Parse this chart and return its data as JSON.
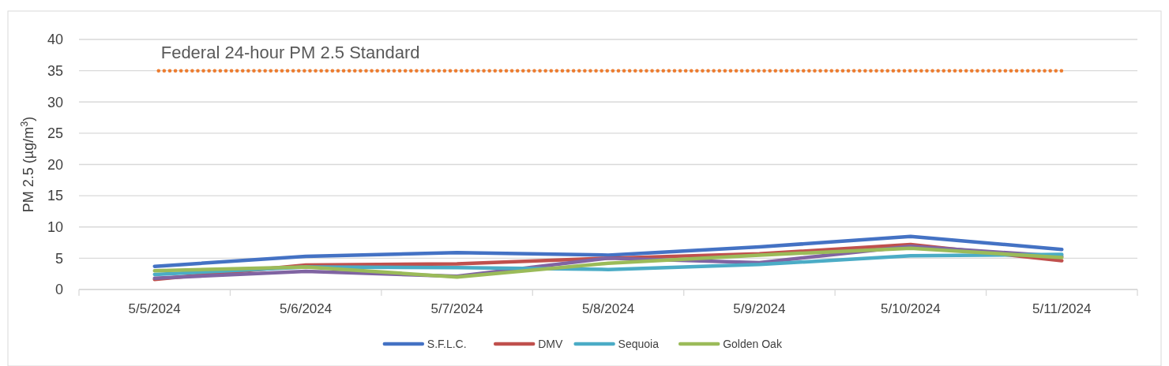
{
  "chart_data": {
    "type": "line",
    "ylabel": "PM 2.5 (µg/m$^{3}$)",
    "categories": [
      "5/5/2024",
      "5/6/2024",
      "5/7/2024",
      "5/8/2024",
      "5/9/2024",
      "5/10/2024",
      "5/11/2024"
    ],
    "ylim": [
      0,
      40
    ],
    "yticks": [
      0,
      5,
      10,
      15,
      20,
      25,
      30,
      35,
      40
    ],
    "grid": "y",
    "legend": "bottom",
    "marker": "none",
    "line_style": "solid",
    "series": [
      {
        "name": "S.F.L.C.",
        "color": "#4472c4",
        "values": [
          3.7,
          5.3,
          5.9,
          5.5,
          6.8,
          8.5,
          6.4
        ]
      },
      {
        "name": "DMV",
        "color": "#c0504d",
        "values": [
          1.6,
          3.9,
          4.1,
          5.0,
          5.7,
          7.2,
          4.6
        ]
      },
      {
        "color": "#8064a2",
        "values": [
          1.8,
          2.9,
          2.1,
          5.0,
          4.3,
          6.9,
          5.3
        ]
      },
      {
        "name": "Sequoia",
        "color": "#4bacc6",
        "values": [
          2.4,
          3.6,
          3.5,
          3.2,
          4.0,
          5.4,
          5.6
        ]
      },
      {
        "name": "Golden Oak",
        "color": "#9bbb59",
        "values": [
          3.0,
          3.6,
          2.0,
          4.2,
          5.5,
          6.6,
          5.1
        ]
      }
    ],
    "ref_lines": [
      {
        "axis": "y",
        "value": 35,
        "label": "Federal 24-hour PM 2.5 Standard",
        "color": "#ed7d31",
        "line_style": "dotted"
      }
    ]
  }
}
